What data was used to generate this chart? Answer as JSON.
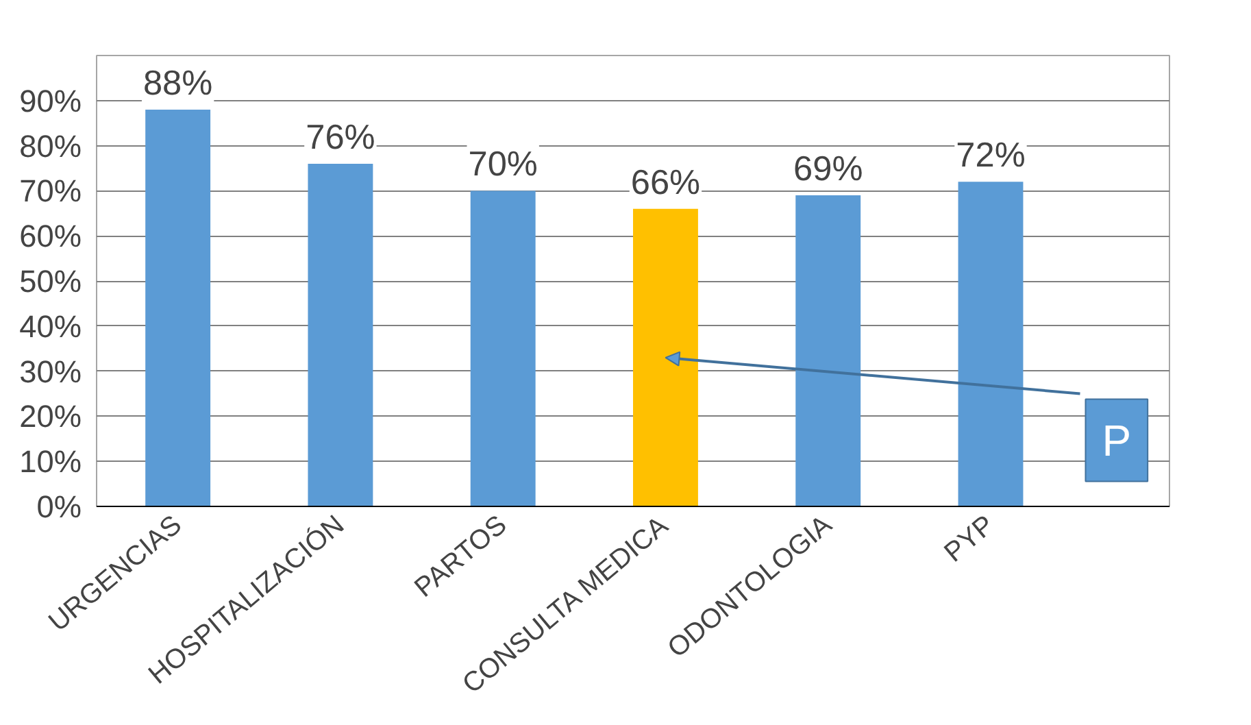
{
  "chart_data": {
    "type": "bar",
    "categories": [
      "URGENCIAS",
      "HOSPITALIZACIÓN",
      "PARTOS",
      "CONSULTA MEDICA",
      "ODONTOLOGIA",
      "PYP"
    ],
    "values": [
      88,
      76,
      70,
      66,
      69,
      72
    ],
    "colors": [
      "#5b9bd5",
      "#5b9bd5",
      "#5b9bd5",
      "#ffc000",
      "#5b9bd5",
      "#5b9bd5"
    ],
    "value_labels": [
      "88%",
      "76%",
      "70%",
      "66%",
      "69%",
      "72%"
    ],
    "ylim": [
      0,
      100
    ],
    "yticks": [
      {
        "value": 0,
        "label": "0%"
      },
      {
        "value": 10,
        "label": "10%"
      },
      {
        "value": 20,
        "label": "20%"
      },
      {
        "value": 30,
        "label": "30%"
      },
      {
        "value": 40,
        "label": "40%"
      },
      {
        "value": 50,
        "label": "50%"
      },
      {
        "value": 60,
        "label": "60%"
      },
      {
        "value": 70,
        "label": "70%"
      },
      {
        "value": 80,
        "label": "80%"
      },
      {
        "value": 90,
        "label": "90%"
      }
    ],
    "grid": "y",
    "annotations": [
      "P"
    ]
  }
}
